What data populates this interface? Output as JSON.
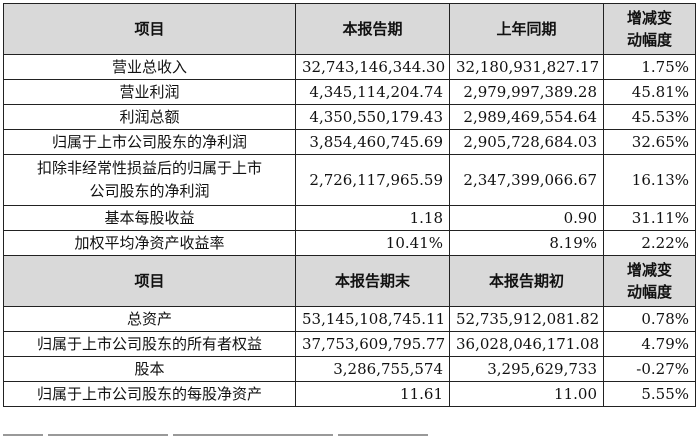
{
  "section1": {
    "headers": [
      "项目",
      "本报告期",
      "上年同期",
      "增减变",
      "动幅度"
    ],
    "rows": [
      {
        "label": [
          "营业总收入"
        ],
        "current": "32,743,146,344.30",
        "prior": "32,180,931,827.17",
        "change": "1.75%"
      },
      {
        "label": [
          "营业利润"
        ],
        "current": "4,345,114,204.74",
        "prior": "2,979,997,389.28",
        "change": "45.81%"
      },
      {
        "label": [
          "利润总额"
        ],
        "current": "4,350,550,179.43",
        "prior": "2,989,469,554.64",
        "change": "45.53%"
      },
      {
        "label": [
          "归属于上市公司股东的净利润"
        ],
        "current": "3,854,460,745.69",
        "prior": "2,905,728,684.03",
        "change": "32.65%"
      },
      {
        "label": [
          "扣除非经常性损益后的归属于上市",
          "公司股东的净利润"
        ],
        "current": "2,726,117,965.59",
        "prior": "2,347,399,066.67",
        "change": "16.13%"
      },
      {
        "label": [
          "基本每股收益"
        ],
        "current": "1.18",
        "prior": "0.90",
        "change": "31.11%"
      },
      {
        "label": [
          "加权平均净资产收益率"
        ],
        "current": "10.41%",
        "prior": "8.19%",
        "change": "2.22%"
      }
    ]
  },
  "section2": {
    "headers": [
      "项目",
      "本报告期末",
      "本报告期初",
      "增减变",
      "动幅度"
    ],
    "rows": [
      {
        "label": [
          "总资产"
        ],
        "current": "53,145,108,745.11",
        "prior": "52,735,912,081.82",
        "change": "0.78%"
      },
      {
        "label": [
          "归属于上市公司股东的所有者权益"
        ],
        "current": "37,753,609,795.77",
        "prior": "36,028,046,171.08",
        "change": "4.79%"
      },
      {
        "label": [
          "股本"
        ],
        "current": "3,286,755,574",
        "prior": "3,295,629,733",
        "change": "-0.27%"
      },
      {
        "label": [
          "归属于上市公司股东的每股净资产"
        ],
        "current": "11.61",
        "prior": "11.00",
        "change": "5.55%"
      }
    ]
  }
}
